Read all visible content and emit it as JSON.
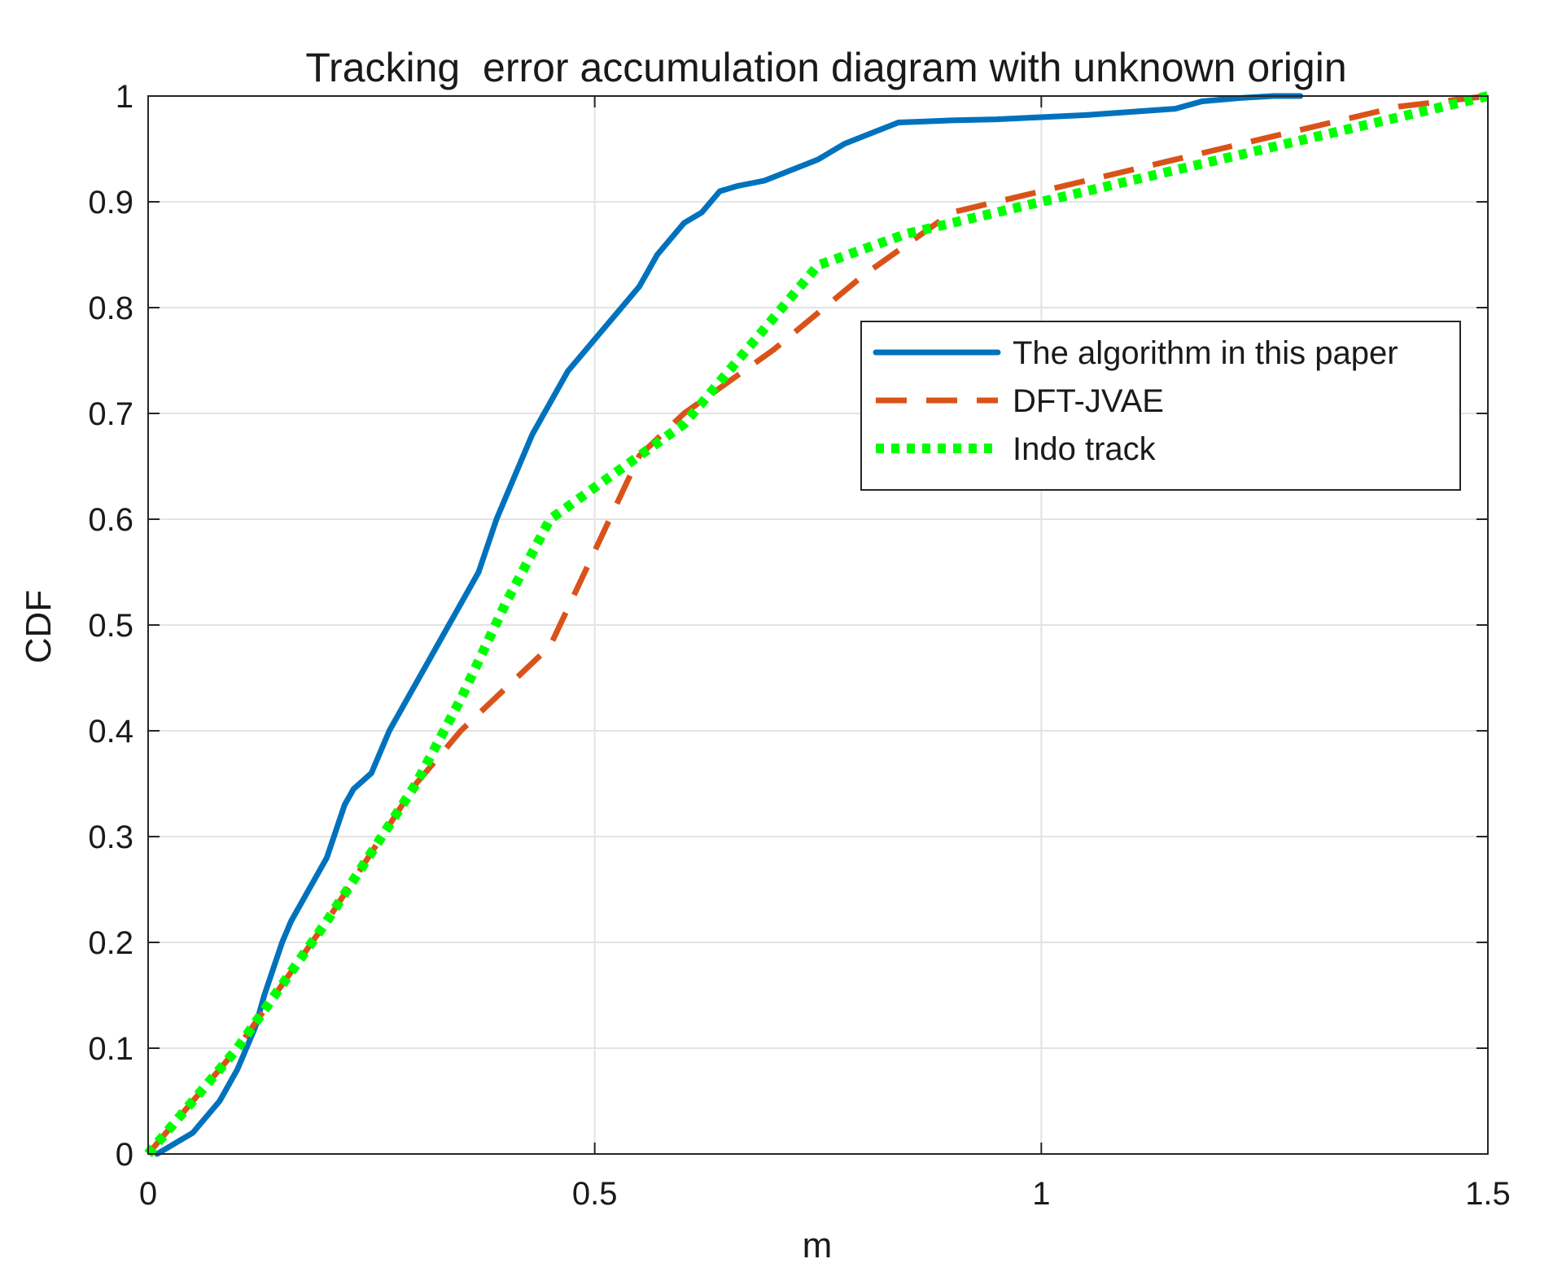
{
  "chart_data": {
    "type": "line",
    "title": "Tracking  error accumulation diagram with unknown origin",
    "xlabel": "m",
    "ylabel": "CDF",
    "xlim": [
      0,
      1.5
    ],
    "ylim": [
      0,
      1
    ],
    "xticks": [
      0,
      0.5,
      1,
      1.5
    ],
    "xtick_labels": [
      "0",
      "0.5",
      "1",
      "1.5"
    ],
    "yticks": [
      0,
      0.1,
      0.2,
      0.3,
      0.4,
      0.5,
      0.6,
      0.7,
      0.8,
      0.9,
      1
    ],
    "ytick_labels": [
      "0",
      "0.1",
      "0.2",
      "0.3",
      "0.4",
      "0.5",
      "0.6",
      "0.7",
      "0.8",
      "0.9",
      "1"
    ],
    "grid": true,
    "legend_position": "upper-right",
    "series": [
      {
        "name": "The algorithm in this paper",
        "color": "#0072BD",
        "line_style": "solid",
        "x": [
          0.01,
          0.03,
          0.05,
          0.06,
          0.08,
          0.1,
          0.12,
          0.13,
          0.15,
          0.16,
          0.18,
          0.2,
          0.22,
          0.23,
          0.25,
          0.27,
          0.29,
          0.31,
          0.33,
          0.35,
          0.37,
          0.39,
          0.41,
          0.43,
          0.45,
          0.47,
          0.49,
          0.51,
          0.53,
          0.55,
          0.57,
          0.6,
          0.62,
          0.64,
          0.66,
          0.69,
          0.72,
          0.75,
          0.78,
          0.81,
          0.84,
          0.87,
          0.9,
          0.95,
          1.0,
          1.05,
          1.1,
          1.15,
          1.18,
          1.22,
          1.26,
          1.29
        ],
        "y": [
          0.0,
          0.01,
          0.02,
          0.03,
          0.05,
          0.08,
          0.12,
          0.15,
          0.2,
          0.22,
          0.25,
          0.28,
          0.33,
          0.345,
          0.36,
          0.4,
          0.43,
          0.46,
          0.49,
          0.52,
          0.55,
          0.6,
          0.64,
          0.68,
          0.71,
          0.74,
          0.76,
          0.78,
          0.8,
          0.82,
          0.85,
          0.88,
          0.89,
          0.91,
          0.915,
          0.92,
          0.93,
          0.94,
          0.955,
          0.965,
          0.975,
          0.976,
          0.977,
          0.978,
          0.98,
          0.982,
          0.985,
          0.988,
          0.995,
          0.998,
          1.0,
          1.0
        ]
      },
      {
        "name": "DFT-JVAE",
        "color": "#D95319",
        "line_style": "dashed",
        "x": [
          0.0,
          0.1,
          0.2,
          0.3,
          0.35,
          0.4,
          0.45,
          0.5,
          0.55,
          0.6,
          0.7,
          0.8,
          0.9,
          1.0,
          1.1,
          1.2,
          1.3,
          1.4,
          1.5
        ],
        "y": [
          0.0,
          0.1,
          0.22,
          0.35,
          0.4,
          0.44,
          0.48,
          0.57,
          0.66,
          0.7,
          0.76,
          0.83,
          0.89,
          0.91,
          0.93,
          0.95,
          0.97,
          0.99,
          1.0
        ]
      },
      {
        "name": "Indo track",
        "color": "#00FF00",
        "line_style": "dotted",
        "x": [
          0.0,
          0.1,
          0.2,
          0.3,
          0.35,
          0.4,
          0.45,
          0.5,
          0.6,
          0.7,
          0.75,
          0.8,
          0.85,
          0.9,
          1.0,
          1.1,
          1.2,
          1.3,
          1.4,
          1.5
        ],
        "y": [
          0.0,
          0.1,
          0.22,
          0.35,
          0.43,
          0.52,
          0.6,
          0.63,
          0.69,
          0.79,
          0.84,
          0.855,
          0.87,
          0.88,
          0.9,
          0.92,
          0.94,
          0.96,
          0.98,
          1.0
        ]
      }
    ]
  }
}
